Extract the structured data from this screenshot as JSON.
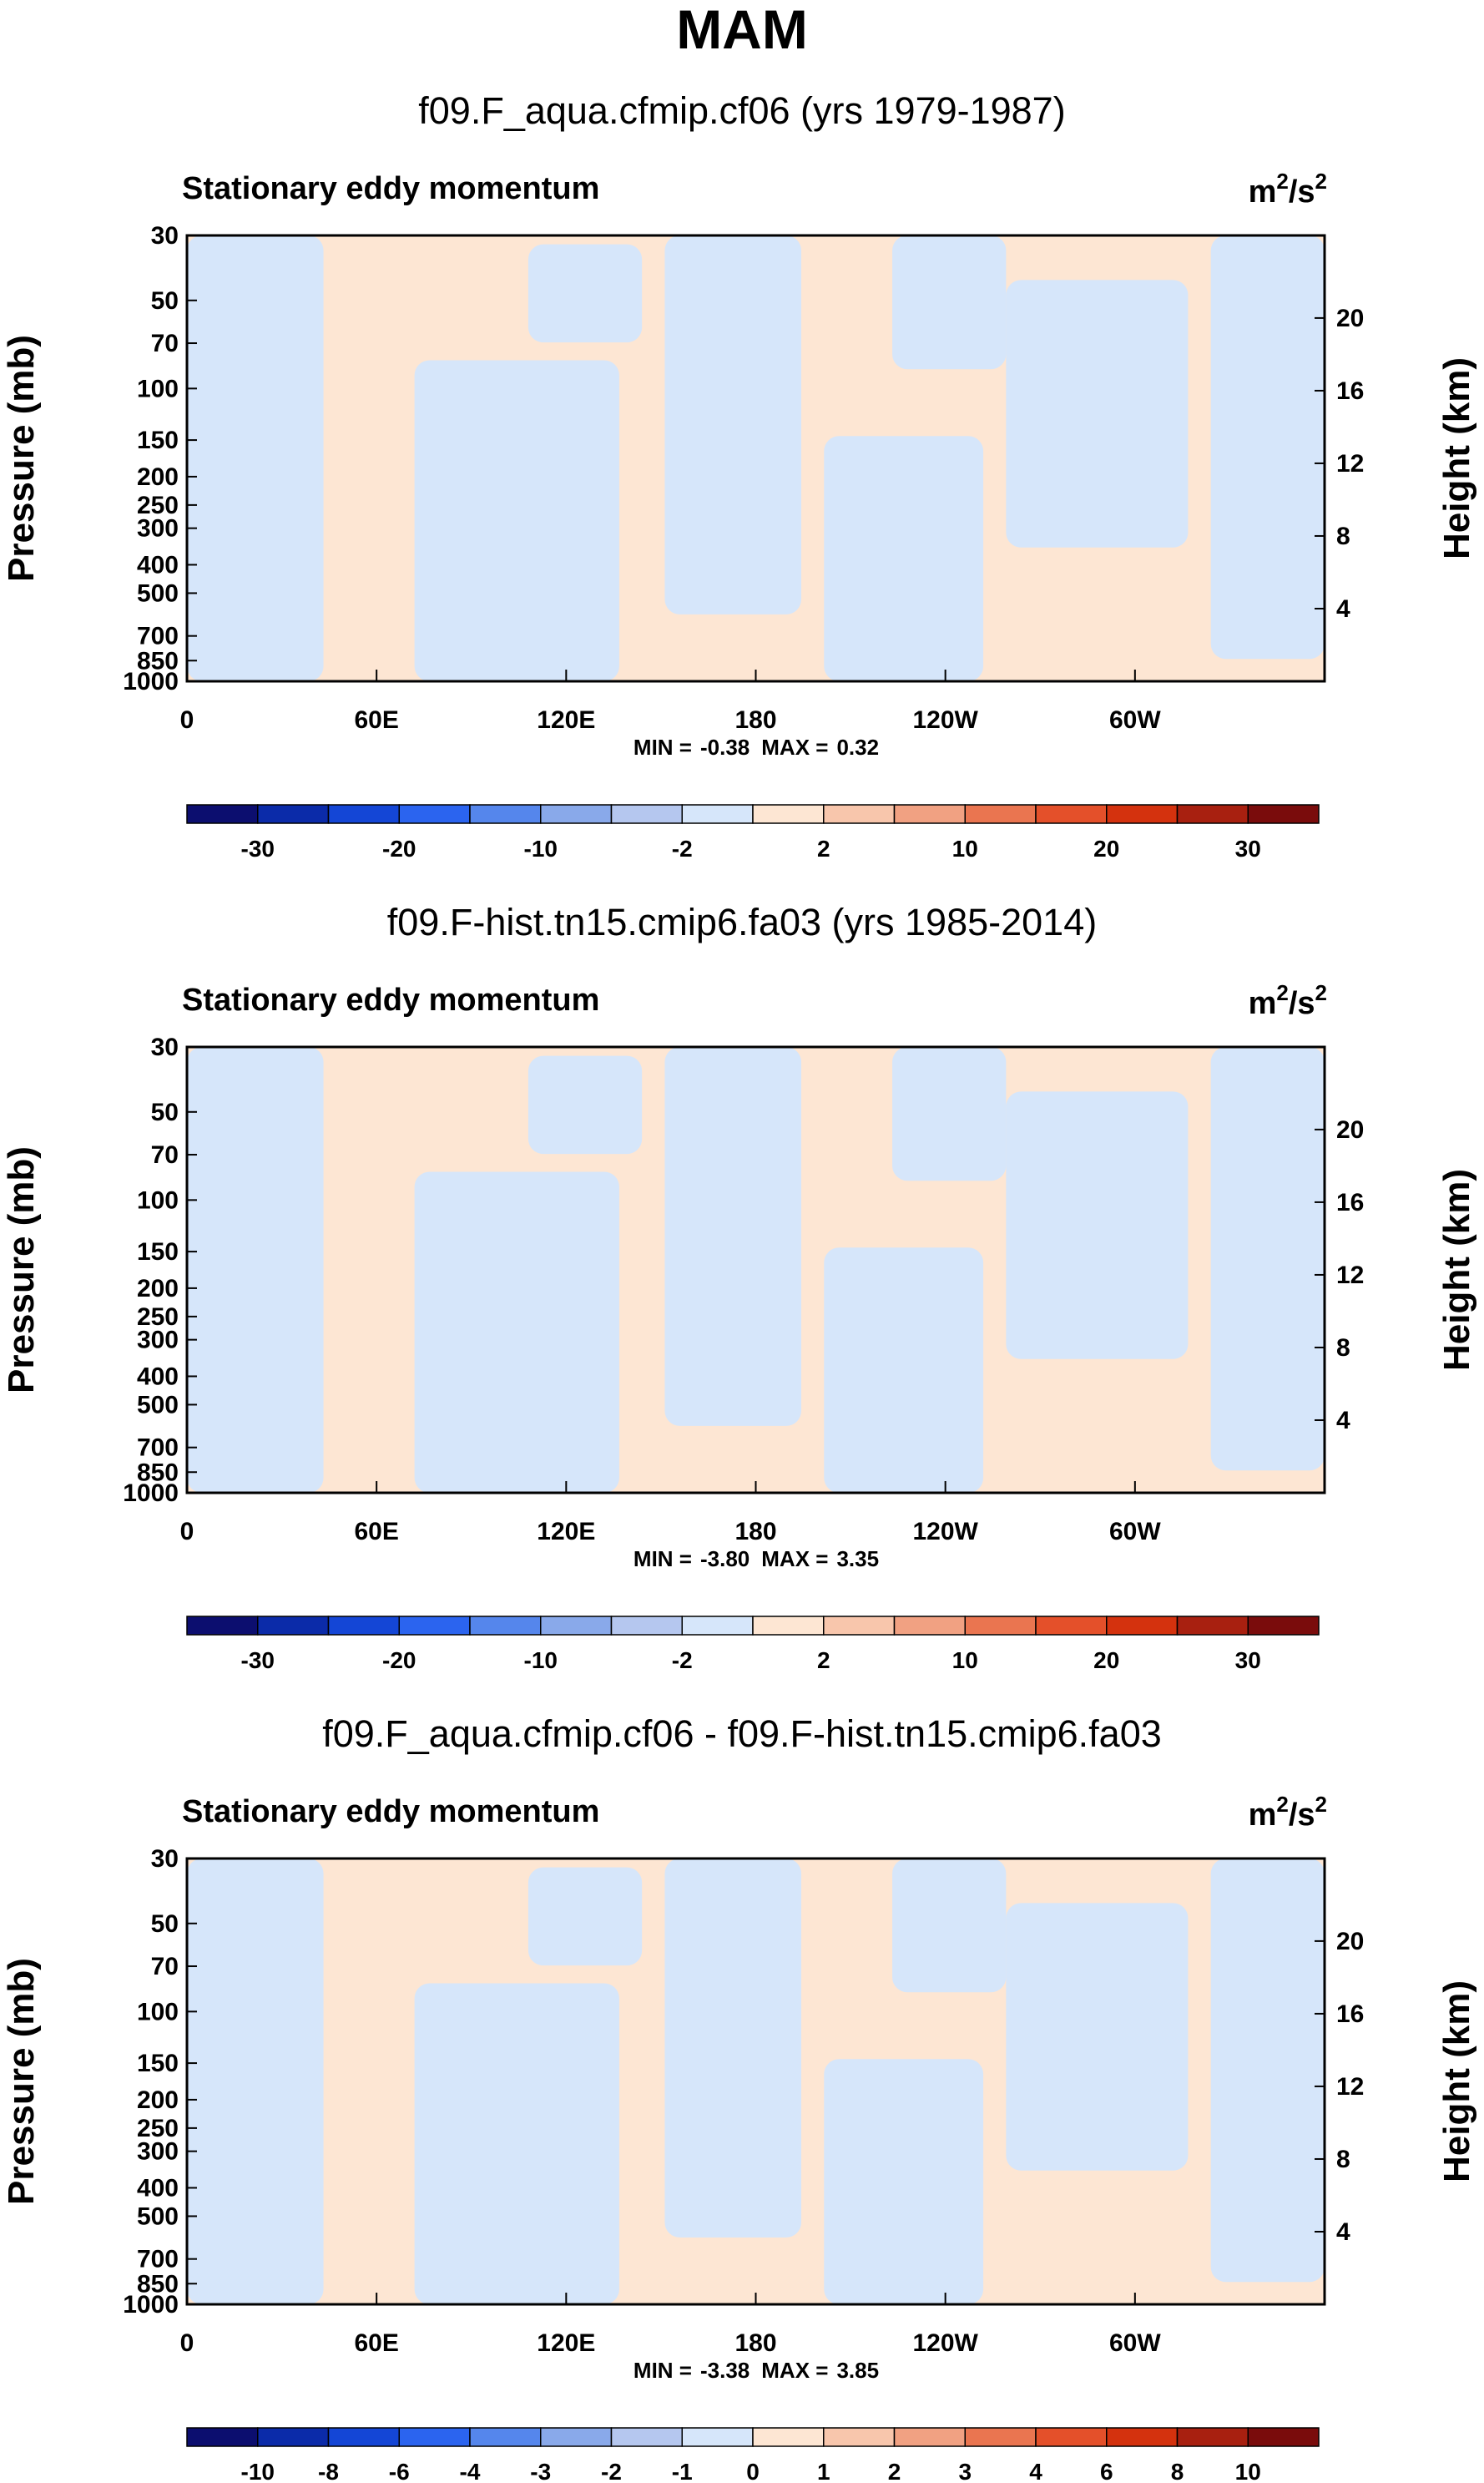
{
  "title": "MAM",
  "pressure_axis_label": "Pressure (mb)",
  "height_axis_label": "Height (km)",
  "chart_data": [
    {
      "type": "heatmap",
      "case": "f09.F_aqua.cfmip.cf06 (yrs 1979-1987)",
      "variable": "Stationary eddy momentum",
      "units_base": "m",
      "units_exp": "2",
      "units_tail": "/s",
      "units_exp2": "2",
      "x_ticks": [
        "0",
        "60E",
        "120E",
        "180",
        "120W",
        "60W"
      ],
      "y_ticks": [
        30,
        50,
        70,
        100,
        150,
        200,
        250,
        300,
        400,
        500,
        700,
        850,
        1000
      ],
      "height_ticks": [
        20,
        16,
        12,
        8,
        4
      ],
      "min": "-0.38",
      "max": "0.32",
      "min_label": "MIN =",
      "max_label": "MAX =",
      "colorbar_labels": [
        "-30",
        "-20",
        "-10",
        "-2",
        "2",
        "10",
        "20",
        "30"
      ],
      "colorbar_colors": [
        "#0c0e6f",
        "#0b2ba9",
        "#1446d6",
        "#2b64ef",
        "#5586ec",
        "#89a9ea",
        "#b5c7ef",
        "#d6e6fa",
        "#fde6d3",
        "#f8c6ac",
        "#f1a182",
        "#ea7550",
        "#e4502a",
        "#d4320e",
        "#a82010",
        "#7a0c0c"
      ],
      "field_colors": {
        "negative": "#d6e6fa",
        "positive": "#fde6d3"
      }
    },
    {
      "type": "heatmap",
      "case": "f09.F-hist.tn15.cmip6.fa03 (yrs 1985-2014)",
      "variable": "Stationary eddy momentum",
      "units_base": "m",
      "units_exp": "2",
      "units_tail": "/s",
      "units_exp2": "2",
      "x_ticks": [
        "0",
        "60E",
        "120E",
        "180",
        "120W",
        "60W"
      ],
      "y_ticks": [
        30,
        50,
        70,
        100,
        150,
        200,
        250,
        300,
        400,
        500,
        700,
        850,
        1000
      ],
      "height_ticks": [
        20,
        16,
        12,
        8,
        4
      ],
      "min": "-3.80",
      "max": "3.35",
      "min_label": "MIN =",
      "max_label": "MAX =",
      "colorbar_labels": [
        "-30",
        "-20",
        "-10",
        "-2",
        "2",
        "10",
        "20",
        "30"
      ],
      "colorbar_colors": [
        "#0c0e6f",
        "#0b2ba9",
        "#1446d6",
        "#2b64ef",
        "#5586ec",
        "#89a9ea",
        "#b5c7ef",
        "#d6e6fa",
        "#fde6d3",
        "#f8c6ac",
        "#f1a182",
        "#ea7550",
        "#e4502a",
        "#d4320e",
        "#a82010",
        "#7a0c0c"
      ],
      "field_colors": {
        "negative": "#d6e6fa",
        "positive": "#fde6d3"
      }
    },
    {
      "type": "heatmap",
      "case": "f09.F_aqua.cfmip.cf06 - f09.F-hist.tn15.cmip6.fa03",
      "variable": "Stationary eddy momentum",
      "units_base": "m",
      "units_exp": "2",
      "units_tail": "/s",
      "units_exp2": "2",
      "x_ticks": [
        "0",
        "60E",
        "120E",
        "180",
        "120W",
        "60W"
      ],
      "y_ticks": [
        30,
        50,
        70,
        100,
        150,
        200,
        250,
        300,
        400,
        500,
        700,
        850,
        1000
      ],
      "height_ticks": [
        20,
        16,
        12,
        8,
        4
      ],
      "min": "-3.38",
      "max": "3.85",
      "min_label": "MIN =",
      "max_label": "MAX =",
      "colorbar_labels": [
        "-10",
        "-8",
        "-6",
        "-4",
        "-3",
        "-2",
        "-1",
        "0",
        "1",
        "2",
        "3",
        "4",
        "6",
        "8",
        "10"
      ],
      "colorbar_colors": [
        "#0c0e6f",
        "#0b2ba9",
        "#1446d6",
        "#2b64ef",
        "#5586ec",
        "#89a9ea",
        "#b5c7ef",
        "#d6e6fa",
        "#fde6d3",
        "#f8c6ac",
        "#f1a182",
        "#ea7550",
        "#e4502a",
        "#d4320e",
        "#a82010",
        "#7a0c0c"
      ],
      "field_colors": {
        "negative": "#d6e6fa",
        "positive": "#fde6d3"
      }
    }
  ]
}
